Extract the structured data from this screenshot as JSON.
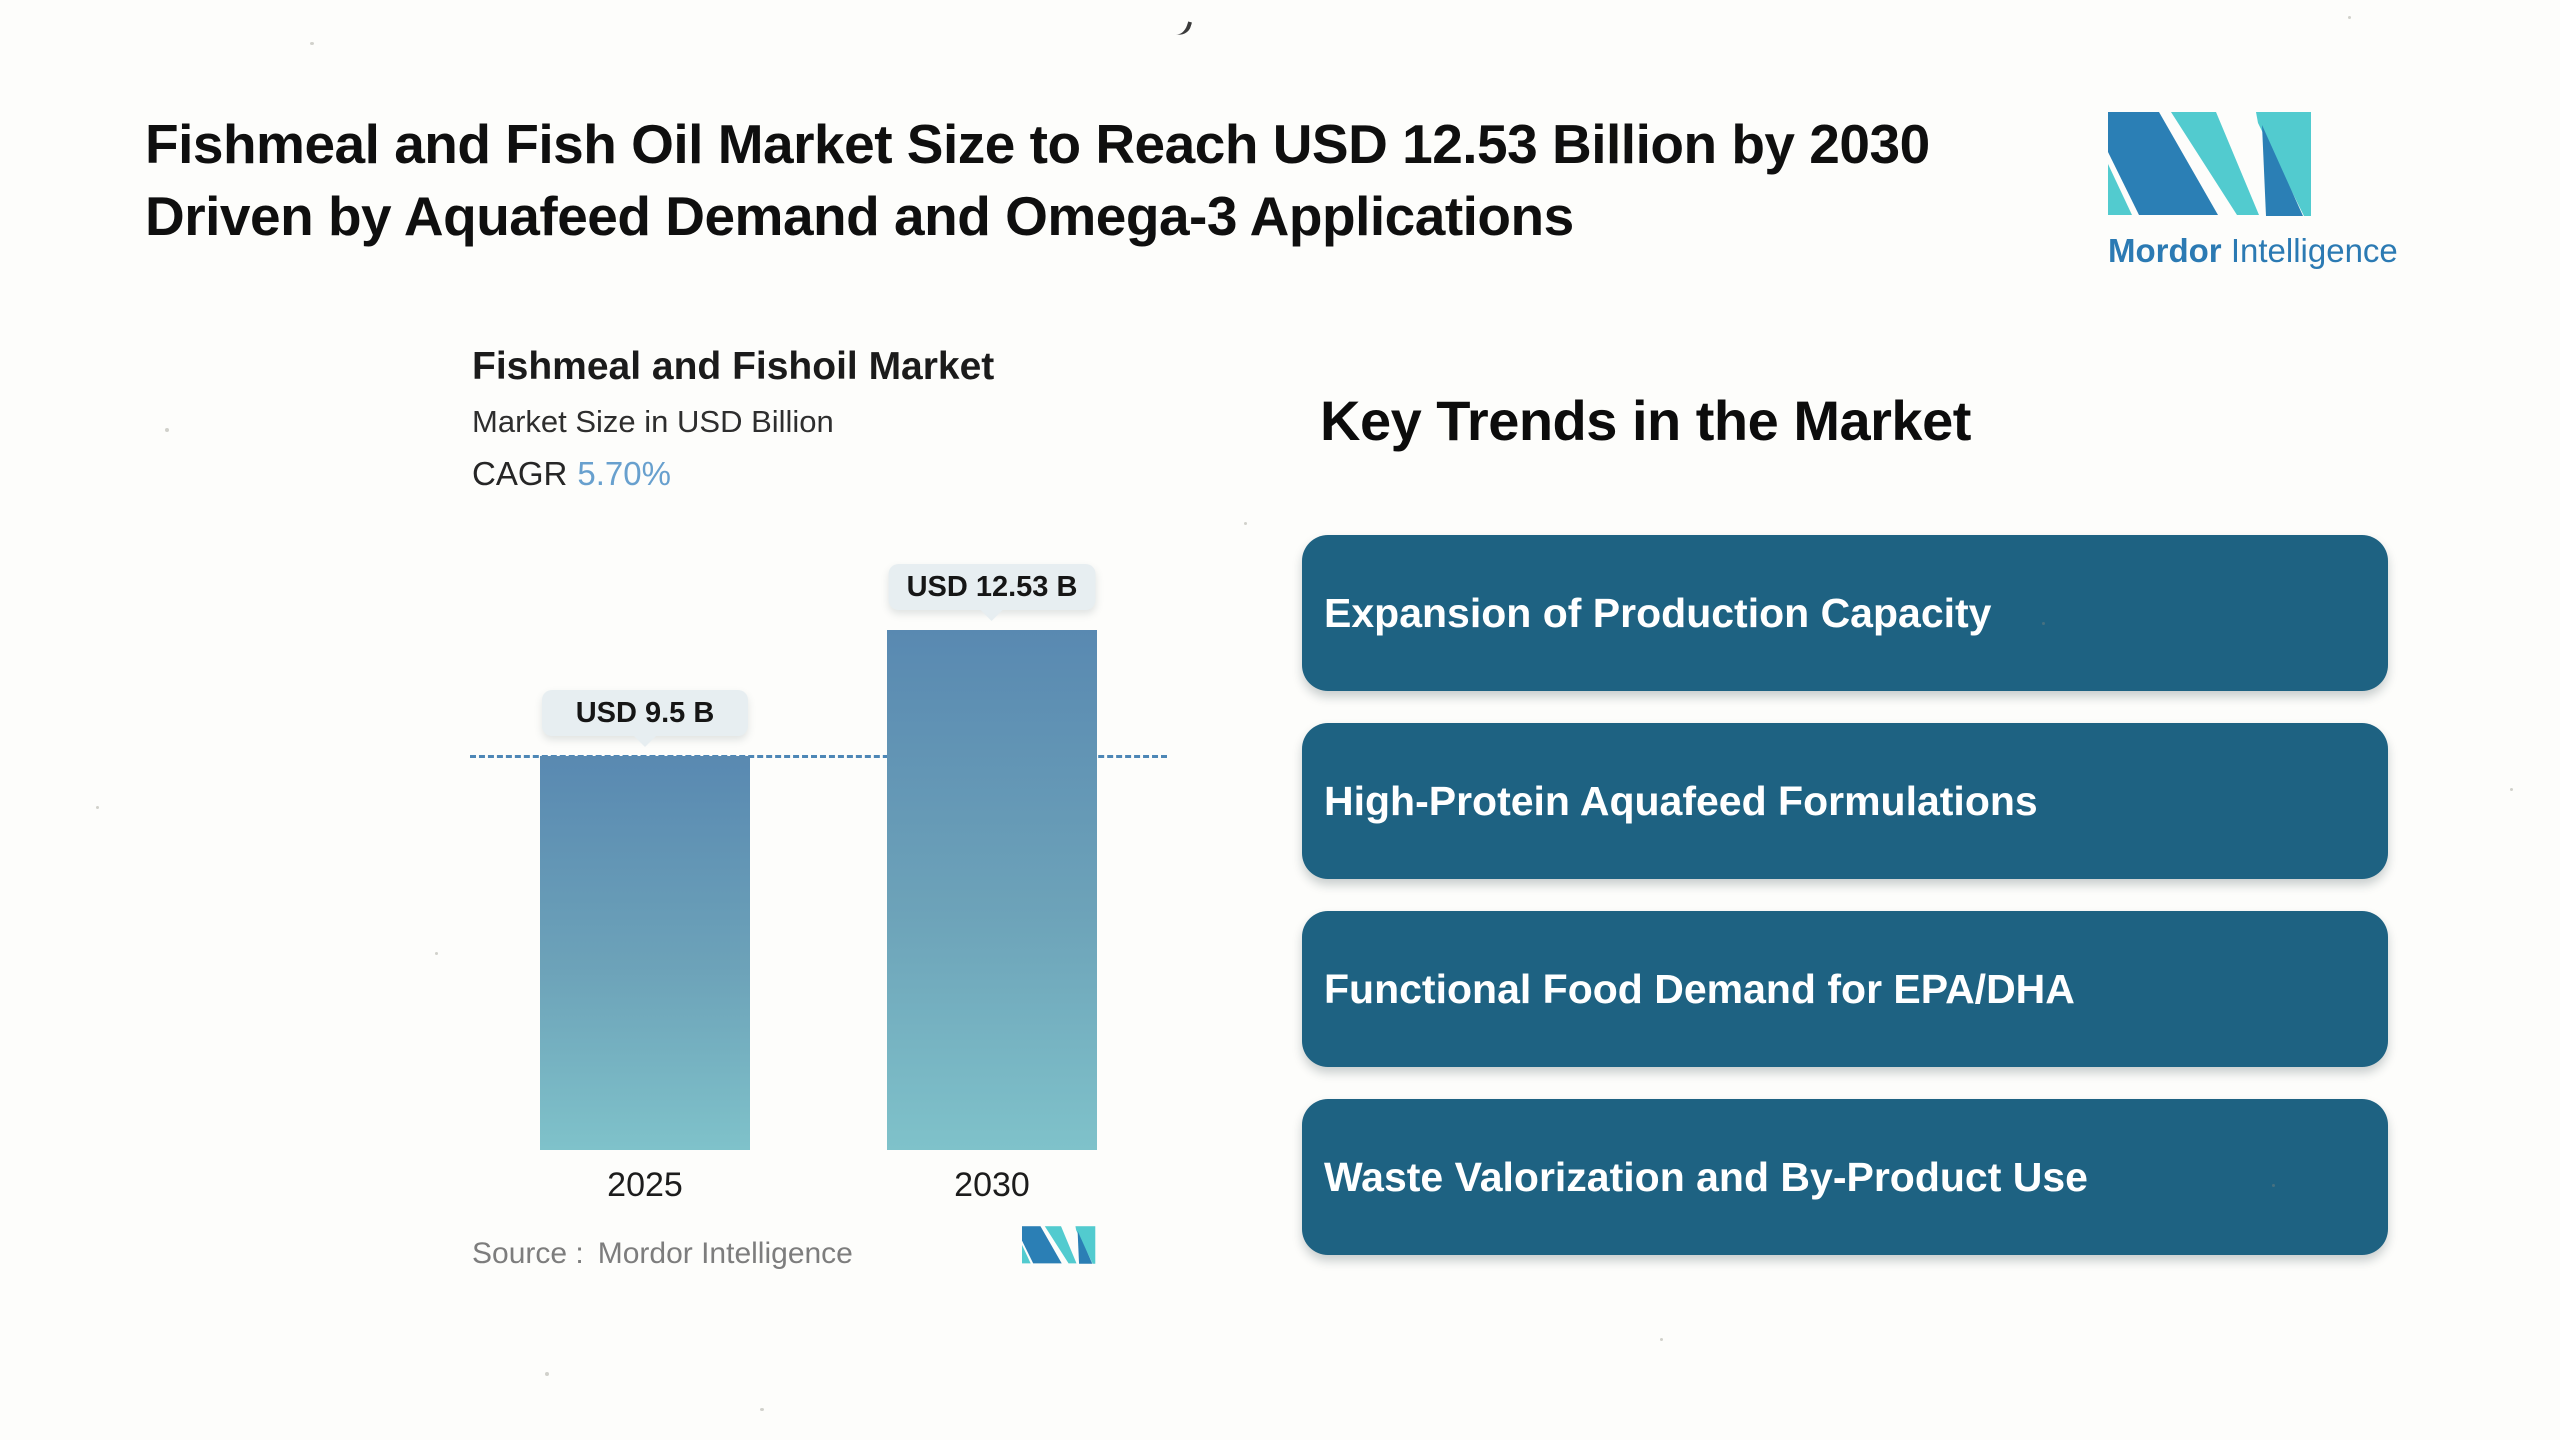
{
  "header": {
    "title_line1": "Fishmeal and Fish Oil Market Size to Reach USD 12.53 Billion by 2030",
    "title_line2": "Driven by Aquafeed Demand and Omega-3 Applications"
  },
  "logo": {
    "brand_bold": "Mordor",
    "brand_regular": "Intelligence",
    "colors": {
      "blue": "#2b7fb5",
      "teal": "#52cbcf"
    }
  },
  "chart": {
    "title": "Fishmeal and Fishoil Market",
    "subtitle": "Market Size in USD Billion",
    "cagr_label": "CAGR",
    "cagr_value": "5.70%",
    "source_label": "Source :",
    "source_value": "Mordor Intelligence"
  },
  "chart_data": {
    "type": "bar",
    "title": "Fishmeal and Fishoil Market",
    "subtitle": "Market Size in USD Billion",
    "cagr": "5.70%",
    "categories": [
      "2025",
      "2030"
    ],
    "values": [
      9.5,
      12.53
    ],
    "value_labels": [
      "USD 9.5 B",
      "USD 12.53 B"
    ],
    "ylabel": "Market Size in USD Billion",
    "ylim": [
      0,
      14
    ],
    "reference_line": 9.5,
    "grid": false,
    "legend": false,
    "bar_gradient": [
      "#5989b1",
      "#7fc2ca"
    ],
    "reference_line_color": "#4d87b6"
  },
  "key_trends": {
    "heading": "Key Trends in the Market",
    "card_color": "#1e6282",
    "items": [
      "Expansion of Production Capacity",
      "High-Protein Aquafeed Formulations",
      "Functional Food Demand for EPA/DHA",
      "Waste Valorization and By-Product Use"
    ]
  }
}
